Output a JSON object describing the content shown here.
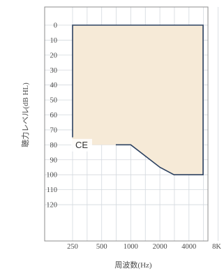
{
  "chart_data": {
    "type": "area",
    "xlabel": "周波数(Hz)",
    "ylabel": "聴力レベル(dB HL)",
    "x_scale": "log",
    "y_inverted": true,
    "ylim": [
      0,
      120
    ],
    "xlim": [
      250,
      8000
    ],
    "x_ticks": [
      250,
      500,
      1000,
      2000,
      4000,
      8000
    ],
    "x_tick_labels": [
      "250",
      "500",
      "1000",
      "2000",
      "4000",
      "8K"
    ],
    "y_ticks": [
      0,
      10,
      20,
      30,
      40,
      50,
      60,
      70,
      80,
      90,
      100,
      110,
      120
    ],
    "y_tick_labels": [
      "0",
      "10",
      "20",
      "30",
      "40",
      "50",
      "60",
      "70",
      "80",
      "90",
      "100",
      "110",
      "120"
    ],
    "grid": true,
    "region": {
      "x": [
        250,
        250,
        1000,
        2000,
        2800,
        5600,
        5600
      ],
      "y": [
        75,
        0,
        0,
        0,
        0,
        0,
        100
      ],
      "lower_x": [
        250,
        1000,
        2000,
        2800,
        5600
      ],
      "lower_y": [
        80,
        80,
        95,
        100,
        100
      ]
    },
    "annotation": "CE",
    "colors": {
      "fill": "#f6ead7",
      "line": "#2c4160",
      "grid": "#d3d8de",
      "frame": "#8c8c8c"
    }
  }
}
